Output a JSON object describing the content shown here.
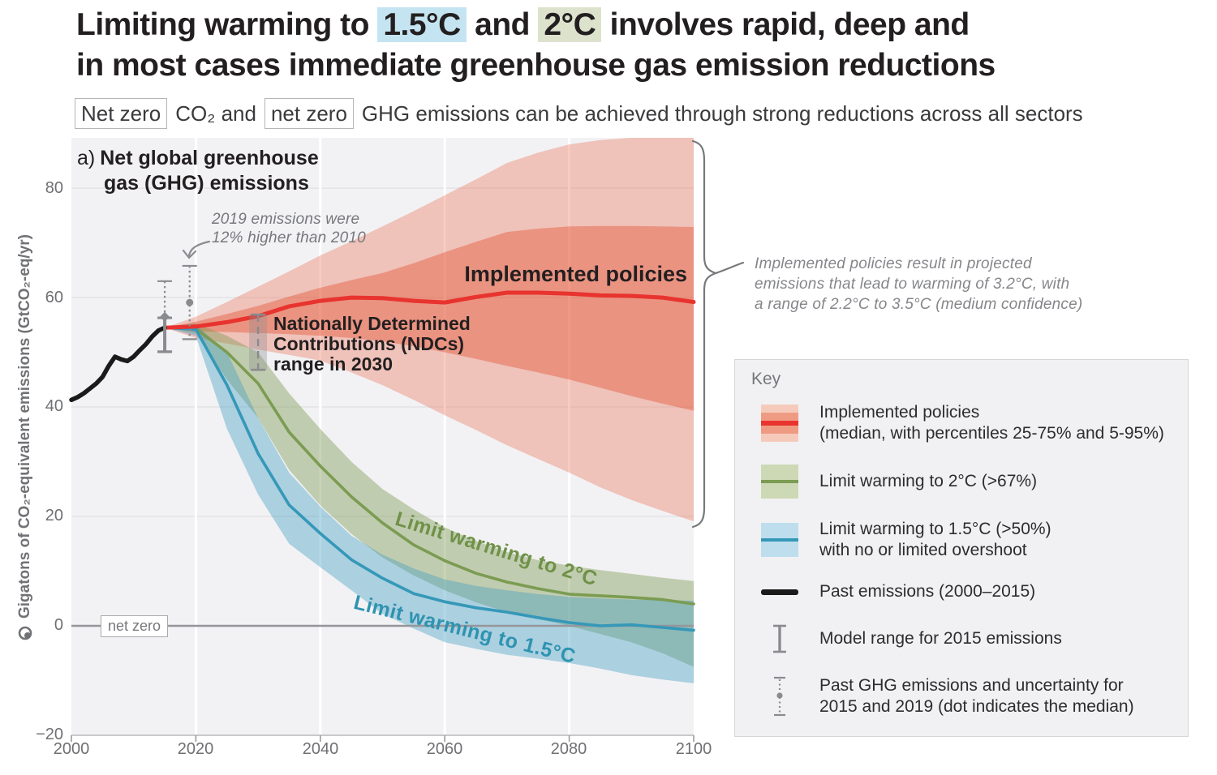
{
  "title": {
    "pre": "Limiting warming to ",
    "t15": "1.5°C",
    "mid": " and ",
    "t2": "2°C",
    "post": " involves rapid, deep and",
    "line2": "in most cases immediate greenhouse gas emission reductions"
  },
  "subtitle": {
    "box1": "Net zero",
    "mid": "CO₂ and",
    "box2": "net zero",
    "rest": "GHG emissions can be achieved through strong reductions across all sectors"
  },
  "panel": {
    "prefix": "a)",
    "line1": "Net global greenhouse",
    "line2": "gas (GHG) emissions"
  },
  "labels": {
    "implemented": "Implemented policies",
    "limit2": "Limit warming to 2°C",
    "limit15": "Limit warming to 1.5°C",
    "netzero": "net zero",
    "ndc1": "Nationally Determined",
    "ndc2": "Contributions (NDCs)",
    "ndc3": "range in 2030",
    "note2019_l1": "2019 emissions were",
    "note2019_l2": "12% higher than 2010",
    "brace_l1": "Implemented policies result in projected",
    "brace_l2": "emissions that lead to warming of 3.2°C, with",
    "brace_l3": "a range of 2.2°C to 3.5°C (medium confidence)"
  },
  "axes": {
    "ylabel": "Gigatons of CO₂-equivalent emissions (GtCO₂-eq/yr)",
    "xticks": [
      "2000",
      "2020",
      "2040",
      "2060",
      "2080",
      "2100"
    ],
    "yticks": [
      "80",
      "60",
      "40",
      "20",
      "0",
      "−20"
    ]
  },
  "key": {
    "title": "Key",
    "items": [
      {
        "type": "red-band-swatch",
        "lines": [
          "Implemented policies",
          "(median, with percentiles 25-75% and 5-95%)"
        ]
      },
      {
        "type": "green-band-swatch",
        "lines": [
          "Limit warming to 2°C (>67%)",
          ""
        ]
      },
      {
        "type": "blue-band-swatch",
        "lines": [
          "Limit warming to 1.5°C (>50%)",
          "with no or limited overshoot"
        ]
      },
      {
        "type": "black-line-swatch",
        "lines": [
          "Past emissions (2000–2015)",
          ""
        ]
      },
      {
        "type": "ibeam-icon",
        "lines": [
          "Model range for 2015 emissions",
          ""
        ]
      },
      {
        "type": "dotted-bar-icon",
        "lines": [
          "Past GHG emissions and uncertainty for",
          "2015 and 2019 (dot indicates the median)"
        ]
      }
    ]
  },
  "colors": {
    "title_text": "#231f20",
    "highlight_blue": "#c5e4f1",
    "highlight_green": "#dde2cd",
    "plot_bg": "#f2f2f4",
    "grid_white": "#ffffff",
    "grid_gray": "#e3e3e5",
    "zero_line": "#96969a",
    "axis_text": "#6f7073",
    "annotation_gray": "#85868a",
    "red_line": "#e8332e",
    "red_inner_fill": "rgba(228,70,35,0.55)",
    "red_outer_fill": "rgba(236,106,78,0.35)",
    "red_inner_swatch": "#ef9b83",
    "red_outer_swatch": "#f6cabb",
    "green_line": "#7b9c52",
    "green_fill": "rgba(124,152,78,0.42)",
    "green_swatch": "#cdd8b5",
    "blue_line": "#3598b8",
    "blue_fill": "rgba(64,158,196,0.40)",
    "blue_swatch": "#bedeed",
    "past_black": "#1a1a1a",
    "gray_errorbar": "#8a8b8e",
    "backdrop_fill": "rgba(140,141,144,0.35)",
    "key_bg": "#f1f1f3",
    "key_border": "#d6d6d8",
    "label_green": "#6f9148",
    "label_blue": "#2e93b0"
  },
  "chart_data": {
    "type": "line",
    "title": "a) Net global greenhouse gas (GHG) emissions",
    "xlabel": "",
    "ylabel": "Gigatons of CO₂-equivalent emissions (GtCO₂-eq/yr)",
    "xlim": [
      2000,
      2100
    ],
    "ylim": [
      -20,
      89.2
    ],
    "xticks_num": [
      2000,
      2020,
      2040,
      2060,
      2080,
      2100
    ],
    "yticks_num": [
      80,
      60,
      40,
      20,
      0,
      -20
    ],
    "grid": {
      "x": [
        2020,
        2040,
        2060,
        2080
      ],
      "y": [
        20,
        40,
        60,
        80
      ]
    },
    "net_zero_line": 0,
    "series": {
      "past": {
        "name": "Past emissions (2000–2015)",
        "x": [
          2000,
          2001,
          2002,
          2003,
          2004,
          2005,
          2006,
          2007,
          2008,
          2009,
          2010,
          2011,
          2012,
          2013,
          2014,
          2015
        ],
        "values": [
          41.3,
          41.8,
          42.5,
          43.4,
          44.3,
          45.5,
          47.5,
          49.2,
          48.7,
          48.4,
          49.2,
          50.4,
          51.5,
          52.9,
          54.0,
          54.5
        ]
      },
      "implemented": {
        "name": "Implemented policies (median, with percentiles 25-75% and 5-95%)",
        "projected_warming": "3.2°C (range 2.2°C to 3.5°C, medium confidence)",
        "x": [
          2015,
          2020,
          2025,
          2030,
          2035,
          2040,
          2045,
          2050,
          2055,
          2060,
          2065,
          2070,
          2075,
          2080,
          2085,
          2090,
          2095,
          2100
        ],
        "values": [
          54.5,
          54.7,
          55.5,
          56.6,
          58.4,
          59.4,
          60.0,
          59.9,
          59.4,
          59.1,
          60.1,
          60.9,
          60.9,
          60.7,
          60.4,
          60.3,
          60.0,
          59.2
        ],
        "inner_upper": [
          54.5,
          55.6,
          57.0,
          58.5,
          60.2,
          61.8,
          63.2,
          64.5,
          66.3,
          68.3,
          70.2,
          72.0,
          72.6,
          73.0,
          73.1,
          73.1,
          73.0,
          72.9
        ],
        "inner_lower": [
          54.5,
          53.8,
          53.7,
          53.5,
          53.3,
          53.0,
          52.6,
          52.0,
          51.1,
          50.0,
          48.8,
          47.5,
          46.3,
          45.0,
          43.5,
          42.0,
          40.6,
          39.3
        ],
        "outer_upper": [
          54.5,
          56.5,
          59.2,
          62.0,
          64.8,
          67.7,
          70.3,
          73.0,
          75.8,
          78.7,
          81.6,
          84.6,
          86.5,
          88.0,
          88.8,
          89.2,
          89.2,
          89.2
        ],
        "outer_lower": [
          54.5,
          52.6,
          51.6,
          50.5,
          49.5,
          48.5,
          46.3,
          44.0,
          41.3,
          38.5,
          35.8,
          33.0,
          30.5,
          28.0,
          25.3,
          23.0,
          21.0,
          19.1
        ]
      },
      "limit2c": {
        "name": "Limit warming to 2°C (>67%)",
        "x": [
          2015,
          2020,
          2025,
          2030,
          2035,
          2040,
          2045,
          2050,
          2055,
          2060,
          2065,
          2070,
          2075,
          2080,
          2085,
          2090,
          2095,
          2100
        ],
        "values": [
          54.5,
          54.3,
          50.0,
          44.3,
          35.4,
          29.2,
          23.6,
          18.8,
          14.8,
          11.9,
          9.6,
          8.0,
          6.8,
          5.8,
          5.5,
          5.2,
          4.8,
          4.0
        ],
        "upper": [
          54.5,
          55.3,
          53.0,
          50.0,
          42.5,
          36.0,
          30.0,
          25.0,
          21.3,
          18.0,
          15.5,
          13.5,
          12.0,
          11.0,
          10.2,
          9.5,
          8.8,
          8.2
        ],
        "lower": [
          54.5,
          53.5,
          45.0,
          38.0,
          28.5,
          22.0,
          16.8,
          12.5,
          9.2,
          6.5,
          4.3,
          2.5,
          1.2,
          0.0,
          -1.5,
          -3.0,
          -5.0,
          -7.5
        ]
      },
      "limit15c": {
        "name": "Limit warming to 1.5°C (>50%) with no or limited overshoot",
        "x": [
          2015,
          2020,
          2025,
          2030,
          2035,
          2040,
          2045,
          2050,
          2055,
          2060,
          2065,
          2070,
          2075,
          2080,
          2085,
          2090,
          2095,
          2100
        ],
        "values": [
          54.5,
          54.2,
          44.0,
          31.5,
          22.1,
          16.9,
          12.1,
          8.7,
          5.9,
          4.4,
          3.3,
          2.5,
          1.5,
          0.6,
          0.0,
          0.2,
          -0.3,
          -0.8
        ],
        "upper": [
          54.5,
          55.0,
          50.0,
          38.0,
          28.0,
          21.8,
          16.5,
          13.0,
          10.5,
          8.5,
          7.3,
          6.5,
          5.8,
          5.3,
          5.0,
          4.8,
          4.7,
          4.6
        ],
        "lower": [
          54.5,
          53.0,
          36.0,
          24.0,
          15.0,
          10.7,
          6.5,
          2.2,
          -0.5,
          -3.0,
          -4.2,
          -5.3,
          -6.0,
          -6.8,
          -7.8,
          -9.0,
          -9.8,
          -10.5
        ]
      }
    },
    "errorbars": [
      {
        "label": "Past GHG emissions and uncertainty for 2015 (dot indicates the median)",
        "year": 2015,
        "low": 50.1,
        "high": 63.0,
        "median": 56.5,
        "style": "dotted",
        "marker": "diamond"
      },
      {
        "label": "Model range for 2015 emissions",
        "year": 2015,
        "low": 50.1,
        "high": 56.3,
        "style": "solid"
      },
      {
        "label": "Past GHG emissions and uncertainty for 2019 (dot indicates the median)",
        "year": 2019,
        "low": 52.4,
        "high": 65.8,
        "median": 59.1,
        "style": "dotted",
        "marker": "circle"
      },
      {
        "label": "Nationally Determined Contributions (NDCs) range in 2030",
        "year": 2030,
        "low": 46.8,
        "high": 56.9,
        "style": "dashed",
        "backdrop": true
      }
    ],
    "annotations": [
      "2019 emissions were 12% higher than 2010",
      "Implemented policies result in projected emissions that lead to warming of 3.2°C, with a range of 2.2°C to 3.5°C (medium confidence)"
    ],
    "legend_position": "right"
  }
}
